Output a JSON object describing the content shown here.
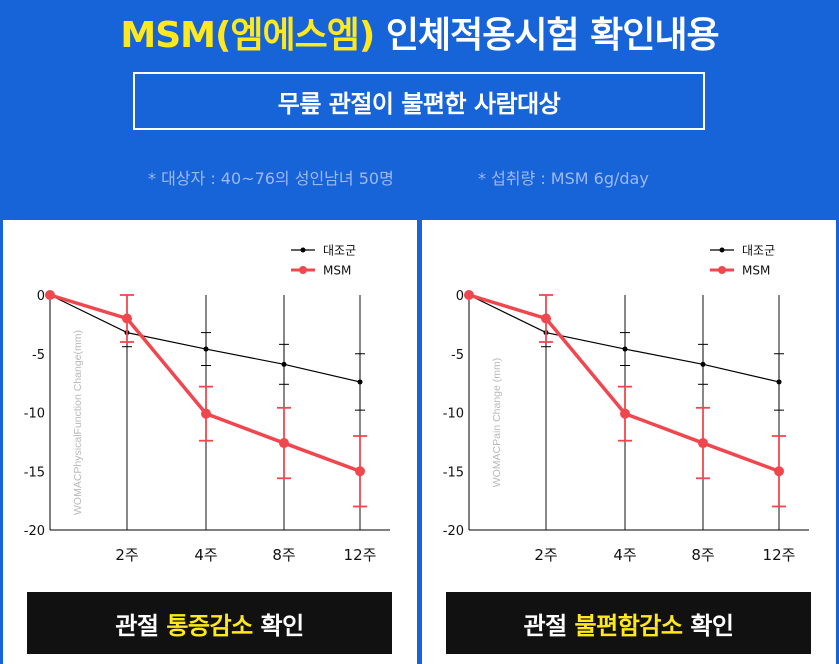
{
  "header": {
    "title_highlight": "MSM(엠에스엠)",
    "title_rest": " 인체적용시험 확인내용",
    "subtitle": "무릎 관절이 불편한 사람대상",
    "note_subjects": "* 대상자 : 40~76의 성인남녀 50명",
    "note_intake": "* 섭취량 : MSM 6g/day"
  },
  "colors": {
    "background": "#1763d8",
    "highlight": "#ffe81c",
    "msm_series": "#f0474f",
    "control_series": "#000000"
  },
  "chart_data": [
    {
      "type": "line",
      "ylabel": "WOMACPhysicalFunction Change(mm)",
      "categories": [
        "",
        "2주",
        "4주",
        "8주",
        "12주"
      ],
      "ylim": [
        -20,
        0
      ],
      "yticks": [
        "0",
        "-5",
        "-10",
        "-15",
        "-20"
      ],
      "legend_position": "top-right",
      "grid": false,
      "series": [
        {
          "name": "대조군",
          "values": [
            0,
            -3.2,
            -4.6,
            -5.9,
            -7.4
          ],
          "errors": [
            0,
            1.2,
            1.4,
            1.7,
            2.4
          ]
        },
        {
          "name": "MSM",
          "values": [
            0,
            -2.0,
            -10.1,
            -12.6,
            -15.0
          ],
          "errors": [
            0,
            2.0,
            2.3,
            3.0,
            3.0
          ]
        }
      ],
      "caption_pre": "관절 ",
      "caption_highlight": "통증감소",
      "caption_post": " 확인"
    },
    {
      "type": "line",
      "ylabel": "WOMACPain Change (mm)",
      "categories": [
        "",
        "2주",
        "4주",
        "8주",
        "12주"
      ],
      "ylim": [
        -20,
        0
      ],
      "yticks": [
        "0",
        "-5",
        "-10",
        "-15",
        "-20"
      ],
      "legend_position": "top-right",
      "grid": false,
      "series": [
        {
          "name": "대조군",
          "values": [
            0,
            -3.2,
            -4.6,
            -5.9,
            -7.4
          ],
          "errors": [
            0,
            1.2,
            1.4,
            1.7,
            2.4
          ]
        },
        {
          "name": "MSM",
          "values": [
            0,
            -2.0,
            -10.1,
            -12.6,
            -15.0
          ],
          "errors": [
            0,
            2.0,
            2.3,
            3.0,
            3.0
          ]
        }
      ],
      "caption_pre": "관절 ",
      "caption_highlight": "불편함감소",
      "caption_post": " 확인"
    }
  ]
}
